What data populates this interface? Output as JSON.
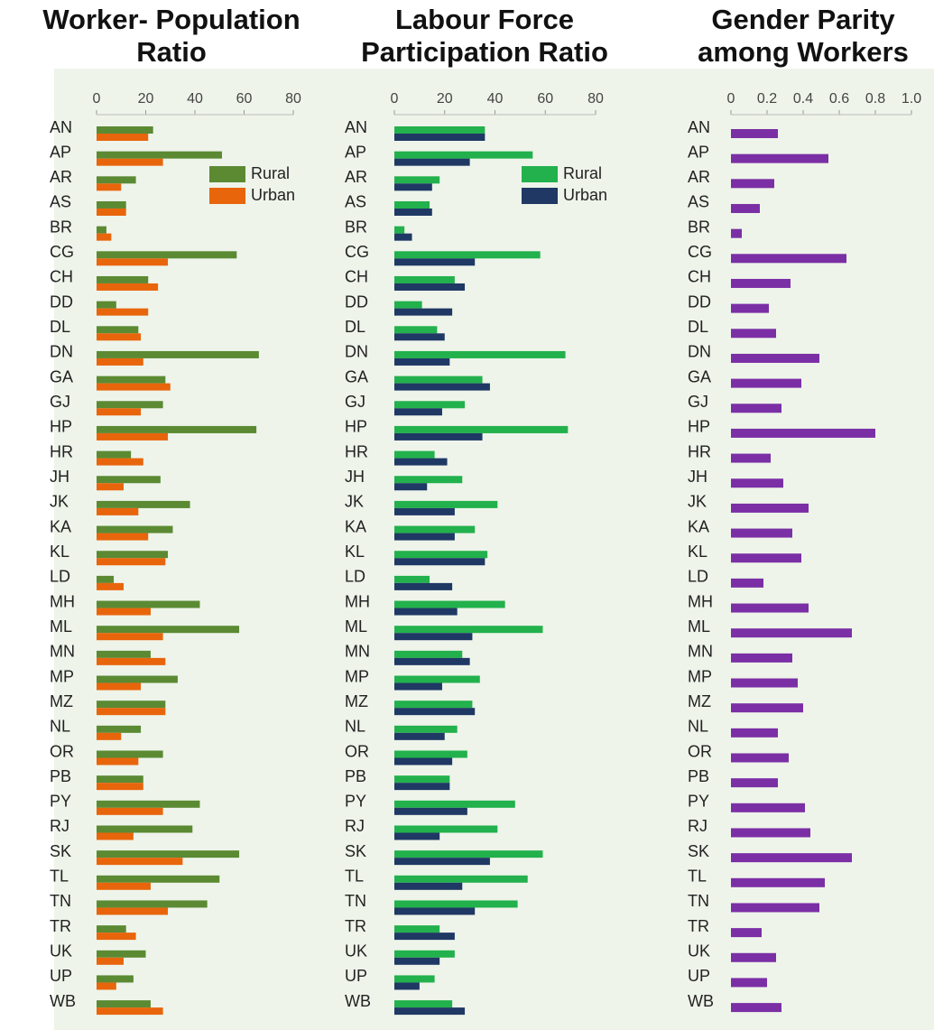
{
  "chart_data": [
    {
      "type": "bar",
      "orientation": "horizontal",
      "title": "Worker- Population Ratio",
      "categories": [
        "AN",
        "AP",
        "AR",
        "AS",
        "BR",
        "CG",
        "CH",
        "DD",
        "DL",
        "DN",
        "GA",
        "GJ",
        "HP",
        "HR",
        "JH",
        "JK",
        "KA",
        "KL",
        "LD",
        "MH",
        "ML",
        "MN",
        "MP",
        "MZ",
        "NL",
        "OR",
        "PB",
        "PY",
        "RJ",
        "SK",
        "TL",
        "TN",
        "TR",
        "UK",
        "UP",
        "WB"
      ],
      "series": [
        {
          "name": "Rural",
          "color": "#5b8a33",
          "values": [
            23,
            51,
            16,
            12,
            4,
            57,
            21,
            8,
            17,
            66,
            28,
            27,
            65,
            14,
            26,
            38,
            31,
            29,
            7,
            42,
            58,
            22,
            33,
            28,
            18,
            27,
            19,
            42,
            39,
            58,
            50,
            45,
            12,
            20,
            15,
            22
          ]
        },
        {
          "name": "Urban",
          "color": "#e8650c",
          "values": [
            21,
            27,
            10,
            12,
            6,
            29,
            25,
            21,
            18,
            19,
            30,
            18,
            29,
            19,
            11,
            17,
            21,
            28,
            11,
            22,
            27,
            28,
            18,
            28,
            10,
            17,
            19,
            27,
            15,
            35,
            22,
            29,
            16,
            11,
            8,
            27
          ]
        }
      ],
      "xlim": [
        0,
        80
      ],
      "xticks": [
        0,
        20,
        40,
        60,
        80
      ],
      "legend": "upper right"
    },
    {
      "type": "bar",
      "orientation": "horizontal",
      "title": "Labour Force Participation Ratio",
      "categories": [
        "AN",
        "AP",
        "AR",
        "AS",
        "BR",
        "CG",
        "CH",
        "DD",
        "DL",
        "DN",
        "GA",
        "GJ",
        "HP",
        "HR",
        "JH",
        "JK",
        "KA",
        "KL",
        "LD",
        "MH",
        "ML",
        "MN",
        "MP",
        "MZ",
        "NL",
        "OR",
        "PB",
        "PY",
        "RJ",
        "SK",
        "TL",
        "TN",
        "TR",
        "UK",
        "UP",
        "WB"
      ],
      "series": [
        {
          "name": "Rural",
          "color": "#22b14c",
          "values": [
            36,
            55,
            18,
            14,
            4,
            58,
            24,
            11,
            17,
            68,
            35,
            28,
            69,
            16,
            27,
            41,
            32,
            37,
            14,
            44,
            59,
            27,
            34,
            31,
            25,
            29,
            22,
            48,
            41,
            59,
            53,
            49,
            18,
            24,
            16,
            23
          ]
        },
        {
          "name": "Urban",
          "color": "#1f3864",
          "values": [
            36,
            30,
            15,
            15,
            7,
            32,
            28,
            23,
            20,
            22,
            38,
            19,
            35,
            21,
            13,
            24,
            24,
            36,
            23,
            25,
            31,
            30,
            19,
            32,
            20,
            23,
            22,
            29,
            18,
            38,
            27,
            32,
            24,
            18,
            10,
            28
          ]
        }
      ],
      "xlim": [
        0,
        80
      ],
      "xticks": [
        0,
        20,
        40,
        60,
        80
      ],
      "legend": "upper right"
    },
    {
      "type": "bar",
      "orientation": "horizontal",
      "title": "Gender Parity among Workers",
      "categories": [
        "AN",
        "AP",
        "AR",
        "AS",
        "BR",
        "CG",
        "CH",
        "DD",
        "DL",
        "DN",
        "GA",
        "GJ",
        "HP",
        "HR",
        "JH",
        "JK",
        "KA",
        "KL",
        "LD",
        "MH",
        "ML",
        "MN",
        "MP",
        "MZ",
        "NL",
        "OR",
        "PB",
        "PY",
        "RJ",
        "SK",
        "TL",
        "TN",
        "TR",
        "UK",
        "UP",
        "WB"
      ],
      "color": "#7b2fa5",
      "values": [
        0.26,
        0.54,
        0.24,
        0.16,
        0.06,
        0.64,
        0.33,
        0.21,
        0.25,
        0.49,
        0.39,
        0.28,
        0.8,
        0.22,
        0.29,
        0.43,
        0.34,
        0.39,
        0.18,
        0.43,
        0.67,
        0.34,
        0.37,
        0.4,
        0.26,
        0.32,
        0.26,
        0.41,
        0.44,
        0.67,
        0.52,
        0.49,
        0.17,
        0.25,
        0.2,
        0.28
      ],
      "xlim": [
        0,
        1
      ],
      "xticks": [
        0,
        0.2,
        0.4,
        0.6,
        0.8,
        {
          "value": 1,
          "label": "1.0"
        }
      ]
    }
  ]
}
